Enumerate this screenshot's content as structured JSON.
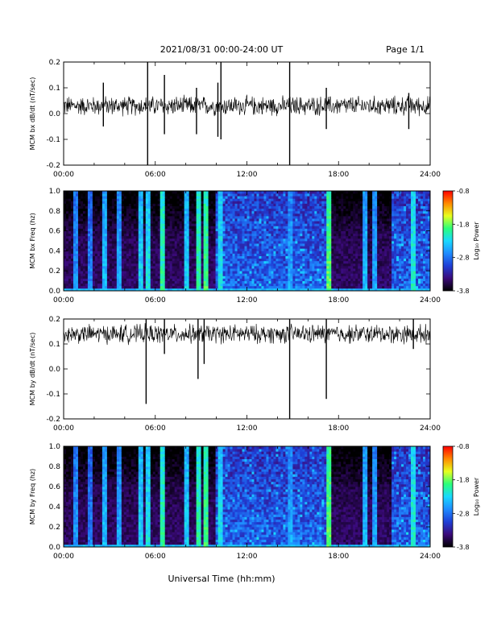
{
  "header": {
    "title": "2021/08/31  00:00-24:00 UT",
    "page": "Page 1/1"
  },
  "footer": {
    "xlabel": "Universal Time (hh:mm)"
  },
  "colors": {
    "trace": "#000000",
    "spectrogram_scale": [
      "#000000",
      "#3b0a7a",
      "#1f3fd6",
      "#1f8cff",
      "#19d9ff",
      "#2bff7a",
      "#e7ff1e",
      "#ff8a00",
      "#ff0000"
    ]
  },
  "chart_data": [
    {
      "type": "line",
      "ylabel": "MCM bx dB/dt (nT/sec)",
      "xlim": [
        0,
        24
      ],
      "ylim": [
        -0.2,
        0.2
      ],
      "xticks": [
        "00:00",
        "06:00",
        "12:00",
        "18:00",
        "24:00"
      ],
      "yticks": [
        "-0.2",
        "-0.1",
        "0.0",
        "0.1",
        "0.2"
      ],
      "baseline": 0.03,
      "noise_amplitude": 0.03,
      "spikes": [
        {
          "t": 2.6,
          "min": -0.05,
          "max": 0.12
        },
        {
          "t": 5.5,
          "min": -0.2,
          "max": 0.21
        },
        {
          "t": 6.6,
          "min": -0.08,
          "max": 0.15
        },
        {
          "t": 8.7,
          "min": -0.08,
          "max": 0.1
        },
        {
          "t": 10.1,
          "min": -0.09,
          "max": 0.12
        },
        {
          "t": 10.3,
          "min": -0.1,
          "max": 0.21
        },
        {
          "t": 14.8,
          "min": -0.2,
          "max": 0.21
        },
        {
          "t": 17.2,
          "min": -0.06,
          "max": 0.1
        },
        {
          "t": 22.6,
          "min": -0.06,
          "max": 0.08
        }
      ]
    },
    {
      "type": "heatmap",
      "ylabel": "MCM bx Freq (hz)",
      "colorbar_label": "Log₁₀ Power",
      "xlim": [
        0,
        24
      ],
      "ylim": [
        0,
        1.0
      ],
      "clim": [
        -3.8,
        -0.8
      ],
      "xticks": [
        "00:00",
        "06:00",
        "12:00",
        "18:00",
        "24:00"
      ],
      "yticks": [
        "0.0",
        "0.2",
        "0.4",
        "0.6",
        "0.8",
        "1.0"
      ],
      "cticks": [
        "-0.8",
        "-1.8",
        "-2.8",
        "-3.8"
      ],
      "quiet_intervals": [
        [
          0.0,
          10.0
        ],
        [
          17.5,
          21.5
        ]
      ],
      "bright_bands": [
        {
          "t": 0.8,
          "power": -2.8
        },
        {
          "t": 1.8,
          "power": -2.9
        },
        {
          "t": 2.7,
          "power": -2.6
        },
        {
          "t": 3.6,
          "power": -2.7
        },
        {
          "t": 5.0,
          "power": -2.5
        },
        {
          "t": 5.6,
          "power": -2.4
        },
        {
          "t": 6.5,
          "power": -2.2
        },
        {
          "t": 8.0,
          "power": -2.5
        },
        {
          "t": 8.8,
          "power": -2.2
        },
        {
          "t": 9.3,
          "power": -2.1
        },
        {
          "t": 10.3,
          "power": -2.4
        },
        {
          "t": 14.8,
          "power": -2.7
        },
        {
          "t": 17.3,
          "power": -2.0
        },
        {
          "t": 19.8,
          "power": -2.6
        },
        {
          "t": 20.4,
          "power": -2.7
        },
        {
          "t": 22.9,
          "power": -2.3
        }
      ]
    },
    {
      "type": "line",
      "ylabel": "MCM by dB/dt (nT/sec)",
      "xlim": [
        0,
        24
      ],
      "ylim": [
        -0.2,
        0.2
      ],
      "xticks": [
        "00:00",
        "06:00",
        "12:00",
        "18:00",
        "24:00"
      ],
      "yticks": [
        "-0.2",
        "-0.1",
        "0.0",
        "0.1",
        "0.2"
      ],
      "baseline": 0.14,
      "noise_amplitude": 0.03,
      "spikes": [
        {
          "t": 5.4,
          "min": -0.14,
          "max": 0.2
        },
        {
          "t": 6.6,
          "min": 0.06,
          "max": 0.2
        },
        {
          "t": 8.8,
          "min": -0.04,
          "max": 0.2
        },
        {
          "t": 9.2,
          "min": 0.02,
          "max": 0.2
        },
        {
          "t": 14.8,
          "min": -0.2,
          "max": 0.2
        },
        {
          "t": 17.2,
          "min": -0.12,
          "max": 0.2
        },
        {
          "t": 22.9,
          "min": 0.08,
          "max": 0.2
        }
      ]
    },
    {
      "type": "heatmap",
      "ylabel": "MCM by Freq (hz)",
      "colorbar_label": "Log₁₀ Power",
      "xlim": [
        0,
        24
      ],
      "ylim": [
        0,
        1.0
      ],
      "clim": [
        -3.8,
        -0.8
      ],
      "xticks": [
        "00:00",
        "06:00",
        "12:00",
        "18:00",
        "24:00"
      ],
      "yticks": [
        "0.0",
        "0.2",
        "0.4",
        "0.6",
        "0.8",
        "1.0"
      ],
      "cticks": [
        "-0.8",
        "-1.8",
        "-2.8",
        "-3.8"
      ],
      "quiet_intervals": [
        [
          0.0,
          10.0
        ],
        [
          17.5,
          21.5
        ]
      ],
      "bright_bands": [
        {
          "t": 0.8,
          "power": -2.8
        },
        {
          "t": 1.8,
          "power": -2.9
        },
        {
          "t": 2.7,
          "power": -2.6
        },
        {
          "t": 3.6,
          "power": -2.7
        },
        {
          "t": 5.0,
          "power": -2.5
        },
        {
          "t": 5.6,
          "power": -2.4
        },
        {
          "t": 6.5,
          "power": -2.2
        },
        {
          "t": 8.0,
          "power": -2.5
        },
        {
          "t": 8.8,
          "power": -2.2
        },
        {
          "t": 9.3,
          "power": -2.1
        },
        {
          "t": 10.3,
          "power": -2.4
        },
        {
          "t": 14.8,
          "power": -2.7
        },
        {
          "t": 17.3,
          "power": -2.0
        },
        {
          "t": 19.8,
          "power": -2.6
        },
        {
          "t": 20.4,
          "power": -2.7
        },
        {
          "t": 22.9,
          "power": -2.3
        }
      ]
    }
  ]
}
